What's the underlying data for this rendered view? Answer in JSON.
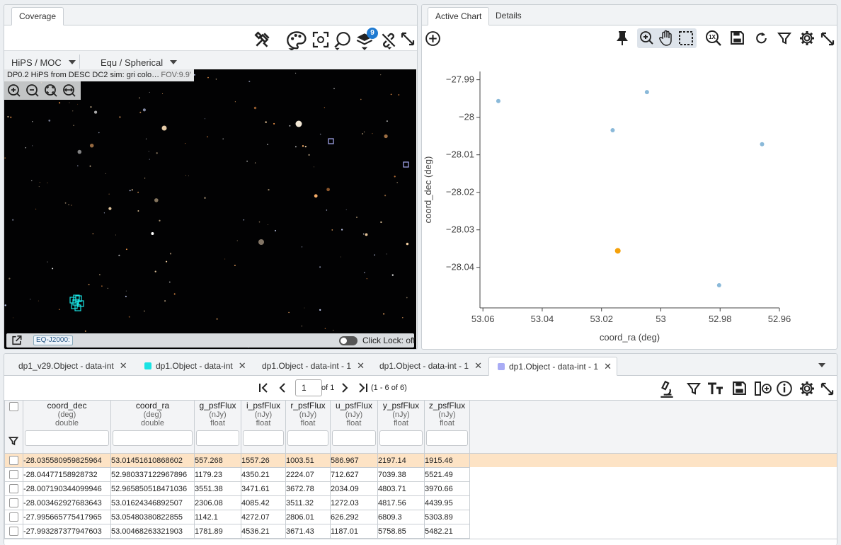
{
  "coverage": {
    "tab": "Coverage",
    "hips_label": "HiPS / MOC",
    "projection_label": "Equ / Spherical",
    "hips_title": "DP0.2 HiPS from DESC DC2 sim: gri colo…",
    "fov": "FOV:9.9'",
    "coord_system": "EQ-J2000:",
    "click_lock": "Click Lock: off",
    "layers_count": "9"
  },
  "chart_panel": {
    "tabs": [
      "Active Chart",
      "Details"
    ]
  },
  "chart_data": {
    "type": "scatter",
    "xlabel": "coord_ra (deg)",
    "ylabel": "coord_dec (deg)",
    "xlim": [
      53.061,
      52.96
    ],
    "ylim": [
      -28.0508,
      -27.9878
    ],
    "x_ticks": [
      "53.06",
      "53.04",
      "53.02",
      "53",
      "52.98",
      "52.96"
    ],
    "y_ticks": [
      "−27.99",
      "−28",
      "−28.01",
      "−28.02",
      "−28.03",
      "−28.04"
    ],
    "x_tick_values": [
      53.06,
      53.04,
      53.02,
      53.0,
      52.98,
      52.96
    ],
    "y_tick_values": [
      -27.99,
      -28.0,
      -28.01,
      -28.02,
      -28.03,
      -28.04
    ],
    "grid": false,
    "point_color": "#8ab9d9",
    "highlight_color": "#f5a10a",
    "points": [
      {
        "x": 53.01451610868602,
        "y": -28.035580959825964,
        "highlight": true
      },
      {
        "x": 52.980337122967896,
        "y": -28.04477158928732,
        "highlight": false
      },
      {
        "x": 52.965850518471036,
        "y": -28.007190344099946,
        "highlight": false
      },
      {
        "x": 53.01624346892507,
        "y": -28.003462927683643,
        "highlight": false
      },
      {
        "x": 53.05480380822855,
        "y": -27.995665775417965,
        "highlight": false
      },
      {
        "x": 53.00468263321903,
        "y": -27.993287377947603,
        "highlight": false
      }
    ]
  },
  "table_panel": {
    "tabs": [
      {
        "label": "dp1_v29.Object - data-int",
        "swatch": ""
      },
      {
        "label": "dp1.Object - data-int",
        "swatch": "#19e3e3"
      },
      {
        "label": "dp1.Object - data-int - 1",
        "swatch": ""
      },
      {
        "label": "dp1.Object - data-int - 1",
        "swatch": ""
      },
      {
        "label": "dp1.Object - data-int - 1",
        "swatch": "#a9acf5"
      }
    ],
    "page": "1",
    "of_pages": "of 1",
    "range": "(1 - 6 of 6)",
    "columns": [
      {
        "name": "coord_dec",
        "unit": "(deg)",
        "type": "double"
      },
      {
        "name": "coord_ra",
        "unit": "(deg)",
        "type": "double"
      },
      {
        "name": "g_psfFlux",
        "unit": "(nJy)",
        "type": "float"
      },
      {
        "name": "i_psfFlux",
        "unit": "(nJy)",
        "type": "float"
      },
      {
        "name": "r_psfFlux",
        "unit": "(nJy)",
        "type": "float"
      },
      {
        "name": "u_psfFlux",
        "unit": "(nJy)",
        "type": "float"
      },
      {
        "name": "y_psfFlux",
        "unit": "(nJy)",
        "type": "float"
      },
      {
        "name": "z_psfFlux",
        "unit": "(nJy)",
        "type": "float"
      }
    ],
    "rows": [
      [
        "-28.035580959825964",
        "53.01451610868602",
        "557.268",
        "1557.26",
        "1003.51",
        "586.967",
        "2197.14",
        "1915.46"
      ],
      [
        "-28.04477158928732",
        "52.980337122967896",
        "1179.23",
        "4350.21",
        "2224.07",
        "712.627",
        "7039.38",
        "5521.49"
      ],
      [
        "-28.007190344099946",
        "52.965850518471036",
        "3551.38",
        "3471.61",
        "3672.78",
        "2034.09",
        "4803.71",
        "3970.66"
      ],
      [
        "-28.003462927683643",
        "53.01624346892507",
        "2306.08",
        "4085.42",
        "3511.32",
        "1272.03",
        "4817.56",
        "4439.95"
      ],
      [
        "-27.995665775417965",
        "53.05480380822855",
        "1142.1",
        "4272.07",
        "2806.01",
        "626.292",
        "6809.3",
        "5303.89"
      ],
      [
        "-27.993287377947603",
        "53.00468263321903",
        "1781.89",
        "4536.21",
        "3671.43",
        "1187.01",
        "5758.85",
        "5482.21"
      ]
    ]
  }
}
